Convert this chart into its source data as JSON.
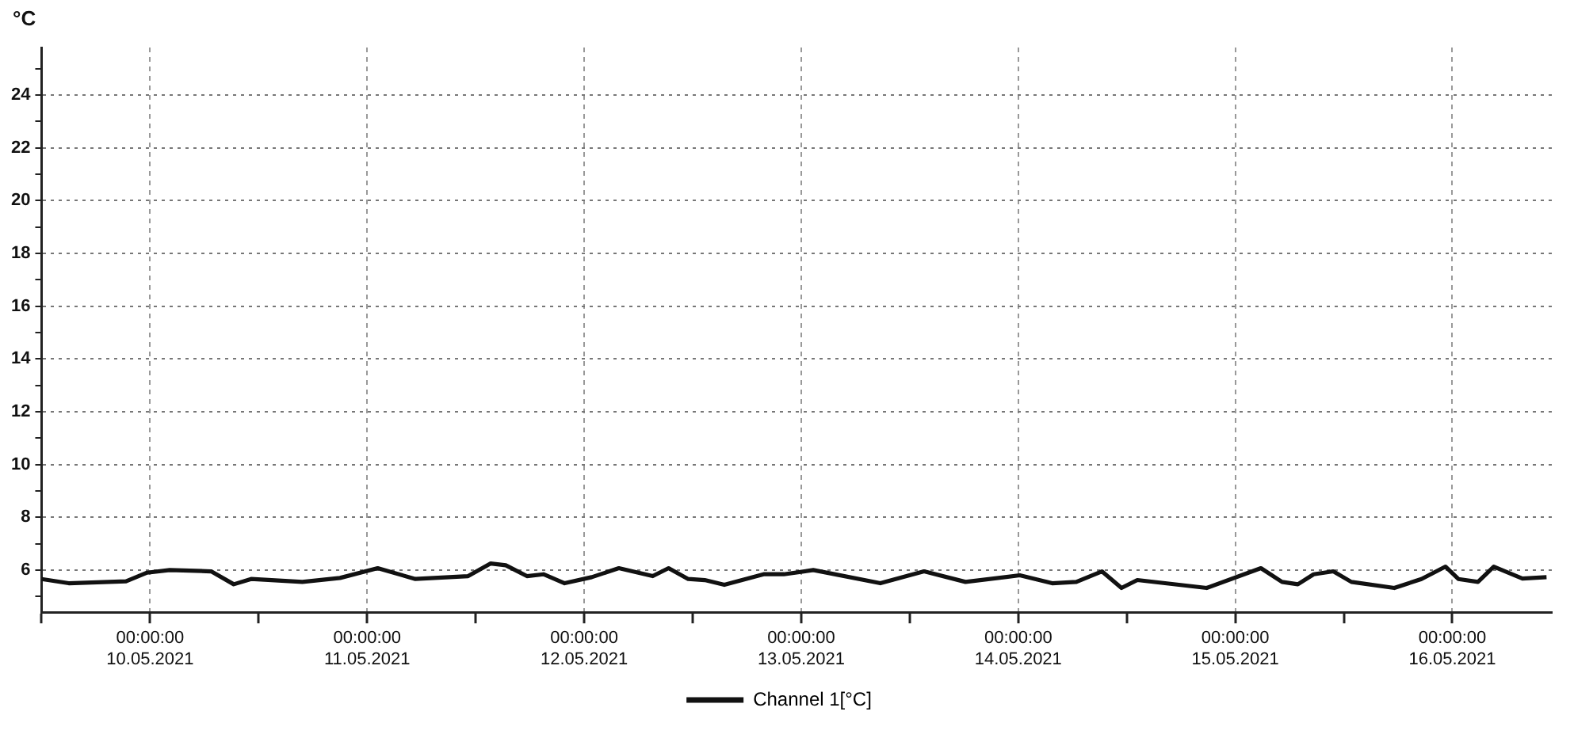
{
  "chart_data": {
    "type": "line",
    "ylabel": "°C",
    "legend": "bottom",
    "grid": true,
    "line_style": "solid",
    "marker": "none",
    "x": [
      "2021-05-09T12:00",
      "2021-05-09T15:00",
      "2021-05-09T21:20",
      "2021-05-09T23:40",
      "2021-05-10T02:10",
      "2021-05-10T06:45",
      "2021-05-10T09:15",
      "2021-05-10T11:10",
      "2021-05-10T16:50",
      "2021-05-10T21:00",
      "2021-05-11T01:10",
      "2021-05-11T05:20",
      "2021-05-11T11:10",
      "2021-05-11T13:40",
      "2021-05-11T15:20",
      "2021-05-11T17:40",
      "2021-05-11T19:30",
      "2021-05-11T21:50",
      "2021-05-12T00:50",
      "2021-05-12T03:50",
      "2021-05-12T07:35",
      "2021-05-12T09:20",
      "2021-05-12T11:30",
      "2021-05-12T13:20",
      "2021-05-12T15:30",
      "2021-05-12T19:50",
      "2021-05-12T22:05",
      "2021-05-13T01:20",
      "2021-05-13T08:45",
      "2021-05-13T13:35",
      "2021-05-13T18:10",
      "2021-05-14T00:10",
      "2021-05-14T03:45",
      "2021-05-14T06:25",
      "2021-05-14T09:15",
      "2021-05-14T11:25",
      "2021-05-14T13:10",
      "2021-05-14T20:50",
      "2021-05-15T02:50",
      "2021-05-15T05:10",
      "2021-05-15T06:55",
      "2021-05-15T08:40",
      "2021-05-15T10:50",
      "2021-05-15T12:50",
      "2021-05-15T17:35",
      "2021-05-15T20:35",
      "2021-05-15T23:15",
      "2021-05-16T00:40",
      "2021-05-16T02:50",
      "2021-05-16T04:35",
      "2021-05-16T07:45",
      "2021-05-16T10:25"
    ],
    "series": [
      {
        "name": "Channel 1[°C]",
        "color": "#111111",
        "values": [
          5.66,
          5.5,
          5.57,
          5.9,
          6.0,
          5.95,
          5.46,
          5.66,
          5.55,
          5.7,
          6.07,
          5.66,
          5.77,
          6.25,
          6.18,
          5.77,
          5.84,
          5.5,
          5.73,
          6.07,
          5.77,
          6.07,
          5.66,
          5.62,
          5.44,
          5.84,
          5.84,
          6.0,
          5.5,
          5.95,
          5.55,
          5.8,
          5.5,
          5.55,
          5.95,
          5.32,
          5.62,
          5.32,
          6.07,
          5.55,
          5.46,
          5.84,
          5.95,
          5.55,
          5.32,
          5.66,
          6.13,
          5.66,
          5.55,
          6.13,
          5.68,
          5.73
        ]
      }
    ],
    "xlim": [
      "2021-05-09T12:00",
      "2021-05-16T11:00"
    ],
    "xticks": [
      {
        "value": "2021-05-09T12:00",
        "label": null
      },
      {
        "value": "2021-05-10T00:00",
        "label": "00:00:00\n10.05.2021"
      },
      {
        "value": "2021-05-10T12:00",
        "label": null
      },
      {
        "value": "2021-05-11T00:00",
        "label": "00:00:00\n11.05.2021"
      },
      {
        "value": "2021-05-11T12:00",
        "label": null
      },
      {
        "value": "2021-05-12T00:00",
        "label": "00:00:00\n12.05.2021"
      },
      {
        "value": "2021-05-12T12:00",
        "label": null
      },
      {
        "value": "2021-05-13T00:00",
        "label": "00:00:00\n13.05.2021"
      },
      {
        "value": "2021-05-13T12:00",
        "label": null
      },
      {
        "value": "2021-05-14T00:00",
        "label": "00:00:00\n14.05.2021"
      },
      {
        "value": "2021-05-14T12:00",
        "label": null
      },
      {
        "value": "2021-05-15T00:00",
        "label": "00:00:00\n15.05.2021"
      },
      {
        "value": "2021-05-15T12:00",
        "label": null
      },
      {
        "value": "2021-05-16T00:00",
        "label": "00:00:00\n16.05.2021"
      }
    ],
    "ylim": [
      4.4,
      25.8
    ],
    "yticks": [
      {
        "value": 5,
        "label": null
      },
      6,
      {
        "value": 7,
        "label": null
      },
      8,
      {
        "value": 9,
        "label": null
      },
      10,
      {
        "value": 11,
        "label": null
      },
      12,
      {
        "value": 13,
        "label": null
      },
      14,
      {
        "value": 15,
        "label": null
      },
      16,
      {
        "value": 17,
        "label": null
      },
      18,
      {
        "value": 19,
        "label": null
      },
      20,
      {
        "value": 21,
        "label": null
      },
      22,
      {
        "value": 23,
        "label": null
      },
      24,
      {
        "value": 25,
        "label": null
      }
    ]
  }
}
